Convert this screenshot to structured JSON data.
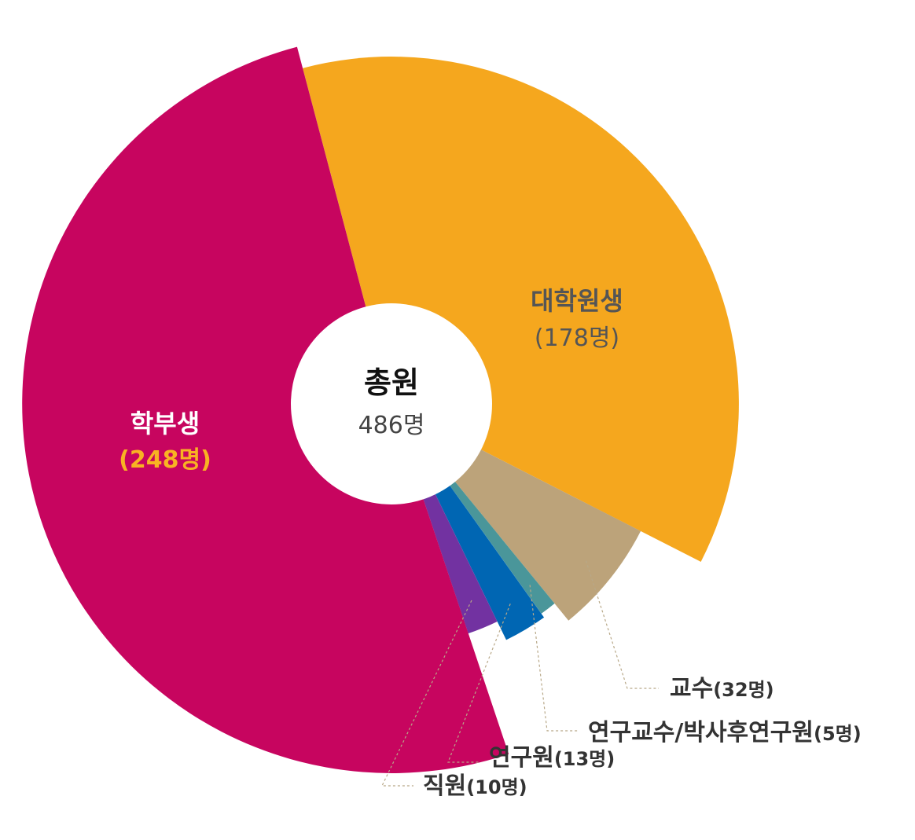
{
  "chart_data": {
    "type": "pie",
    "center_label": {
      "title": "총원",
      "value": "486명"
    },
    "slices": [
      {
        "name": "대학원생",
        "value": 178,
        "value_label": "(178명)",
        "color": "#F5A71E"
      },
      {
        "name": "교수",
        "value": 32,
        "value_label": "(32명)",
        "color": "#BCA37A"
      },
      {
        "name": "연구교수/박사후연구원",
        "value": 5,
        "value_label": "(5명)",
        "color": "#4A969A"
      },
      {
        "name": "연구원",
        "value": 13,
        "value_label": "(13명)",
        "color": "#0066B3"
      },
      {
        "name": "직원",
        "value": 10,
        "value_label": "(10명)",
        "color": "#7232A1"
      },
      {
        "name": "학부생",
        "value": 248,
        "value_label": "(248명)",
        "color": "#C7055F"
      }
    ],
    "label_colors": {
      "inside_dark": "#555555",
      "inside_light": "#ffffff",
      "highlight_value": "#F8B323",
      "outside": "#333333",
      "leader_line": "#B8A888"
    }
  }
}
